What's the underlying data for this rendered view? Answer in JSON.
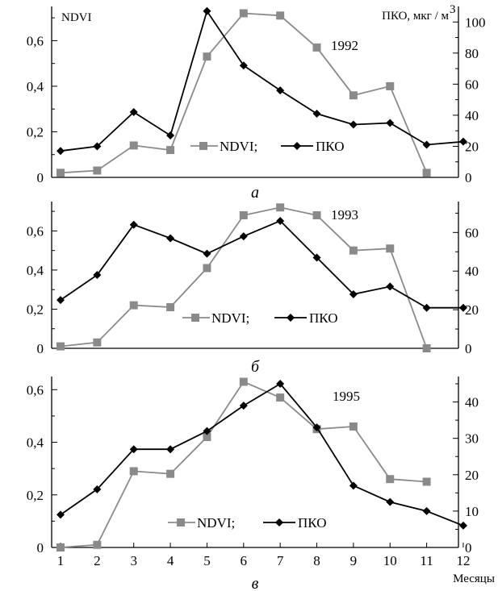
{
  "chart_data": [
    {
      "type": "line",
      "panel_label": "а",
      "year_label": "1992",
      "left_axis_title": "NDVI",
      "right_axis_title": "ПКО, мкг / м",
      "right_axis_title_sup": "3",
      "x": [
        1,
        2,
        3,
        4,
        5,
        6,
        7,
        8,
        9,
        10,
        11,
        12
      ],
      "left_ylim": [
        0,
        0.75
      ],
      "right_ylim": [
        0,
        110
      ],
      "left_ticks": [
        "0",
        "0,2",
        "0,4",
        "0,6"
      ],
      "left_tick_values": [
        0,
        0.2,
        0.4,
        0.6
      ],
      "right_ticks": [
        "0",
        "20",
        "40",
        "60",
        "80",
        "100"
      ],
      "right_tick_values": [
        0,
        20,
        40,
        60,
        80,
        100
      ],
      "legend_ndvi": "NDVI;",
      "legend_pko": "ПКО",
      "series": [
        {
          "name": "NDVI;",
          "axis": "left",
          "color": "#8a8a8a",
          "marker": "square",
          "values": [
            0.02,
            0.03,
            0.14,
            0.12,
            0.53,
            0.72,
            0.71,
            0.57,
            0.36,
            0.4,
            0.02,
            null
          ]
        },
        {
          "name": "ПКО",
          "axis": "right",
          "color": "#000000",
          "marker": "diamond",
          "values": [
            17,
            20,
            42,
            27,
            107,
            72,
            56,
            41,
            34,
            35,
            21,
            23
          ]
        }
      ],
      "grid": false
    },
    {
      "type": "line",
      "panel_label": "б",
      "year_label": "1993",
      "left_axis_title": "",
      "right_axis_title": "",
      "right_axis_title_sup": "",
      "x": [
        1,
        2,
        3,
        4,
        5,
        6,
        7,
        8,
        9,
        10,
        11,
        12
      ],
      "left_ylim": [
        0,
        0.75
      ],
      "right_ylim": [
        0,
        76
      ],
      "left_ticks": [
        "0",
        "0,2",
        "0,4",
        "0,6"
      ],
      "left_tick_values": [
        0,
        0.2,
        0.4,
        0.6
      ],
      "right_ticks": [
        "0",
        "20",
        "40",
        "60"
      ],
      "right_tick_values": [
        0,
        20,
        40,
        60
      ],
      "legend_ndvi": "NDVI;",
      "legend_pko": "ПКО",
      "series": [
        {
          "name": "NDVI;",
          "axis": "left",
          "color": "#8a8a8a",
          "marker": "square",
          "values": [
            0.01,
            0.03,
            0.22,
            0.21,
            0.41,
            0.68,
            0.72,
            0.68,
            0.5,
            0.51,
            0.0,
            null
          ]
        },
        {
          "name": "ПКО",
          "axis": "right",
          "color": "#000000",
          "marker": "diamond",
          "values": [
            25,
            38,
            64,
            57,
            49,
            58,
            66,
            47,
            28,
            32,
            21,
            21
          ]
        }
      ],
      "grid": false
    },
    {
      "type": "line",
      "panel_label": "в",
      "year_label": "1995",
      "left_axis_title": "",
      "right_axis_title": "",
      "right_axis_title_sup": "",
      "x": [
        1,
        2,
        3,
        4,
        5,
        6,
        7,
        8,
        9,
        10,
        11,
        12
      ],
      "x_ticks": [
        "1",
        "2",
        "3",
        "4",
        "5",
        "6",
        "7",
        "8",
        "9",
        "10",
        "11",
        "12"
      ],
      "xlabel": "Месяцы",
      "left_ylim": [
        0,
        0.65
      ],
      "right_ylim": [
        0,
        47
      ],
      "left_ticks": [
        "0",
        "0,2",
        "0,4",
        "0,6"
      ],
      "left_tick_values": [
        0,
        0.2,
        0.4,
        0.6
      ],
      "right_ticks": [
        "0",
        "10",
        "20",
        "30",
        "40"
      ],
      "right_tick_values": [
        0,
        10,
        20,
        30,
        40
      ],
      "legend_ndvi": "NDVI;",
      "legend_pko": "ПКО",
      "series": [
        {
          "name": "NDVI;",
          "axis": "left",
          "color": "#8a8a8a",
          "marker": "square",
          "values": [
            0.0,
            0.01,
            0.29,
            0.28,
            0.42,
            0.63,
            0.57,
            0.45,
            0.46,
            0.26,
            0.25,
            null
          ]
        },
        {
          "name": "ПКО",
          "axis": "right",
          "color": "#000000",
          "marker": "diamond",
          "values": [
            9,
            16,
            27,
            27,
            32,
            39,
            45,
            33,
            17,
            12.5,
            10,
            6
          ]
        }
      ],
      "grid": false
    }
  ]
}
